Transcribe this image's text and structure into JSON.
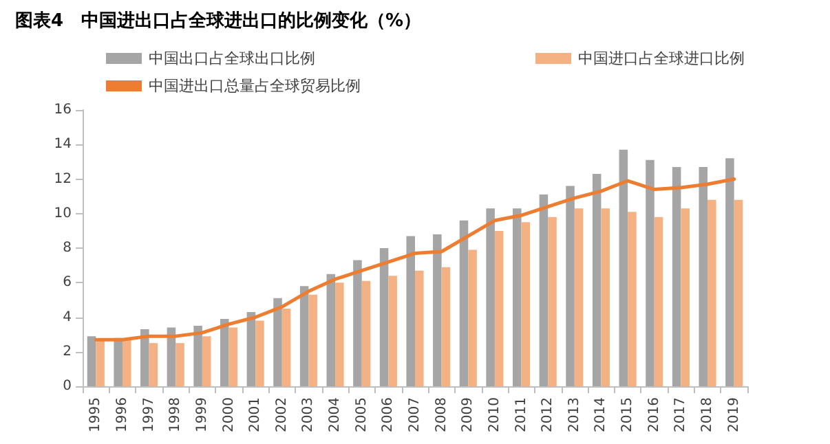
{
  "chart_data": {
    "type": "bar",
    "title": "图表4　中国进出口占全球进出口的比例变化（%）",
    "categories": [
      "1995",
      "1996",
      "1997",
      "1998",
      "1999",
      "2000",
      "2001",
      "2002",
      "2003",
      "2004",
      "2005",
      "2006",
      "2007",
      "2008",
      "2009",
      "2010",
      "2011",
      "2012",
      "2013",
      "2014",
      "2015",
      "2016",
      "2017",
      "2018",
      "2019"
    ],
    "series": [
      {
        "name": "中国出口占全球出口比例",
        "color": "#a5a5a5",
        "values": [
          2.9,
          2.8,
          3.3,
          3.4,
          3.5,
          3.9,
          4.3,
          5.1,
          5.8,
          6.5,
          7.3,
          8.0,
          8.7,
          8.8,
          9.6,
          10.3,
          10.3,
          11.1,
          11.6,
          12.3,
          13.7,
          13.1,
          12.7,
          12.7,
          13.2
        ]
      },
      {
        "name": "中国进口占全球进口比例",
        "color": "#f4b183",
        "values": [
          2.7,
          2.7,
          2.5,
          2.5,
          2.9,
          3.4,
          3.8,
          4.5,
          5.3,
          6.0,
          6.1,
          6.4,
          6.7,
          6.9,
          7.9,
          9.0,
          9.5,
          9.8,
          10.3,
          10.3,
          10.1,
          9.8,
          10.3,
          10.8,
          10.8
        ]
      },
      {
        "name": "中国进出口总量占全球贸易比例",
        "type": "line",
        "color": "#ed7d31",
        "values": [
          2.7,
          2.7,
          2.9,
          2.9,
          3.1,
          3.6,
          4.0,
          4.6,
          5.5,
          6.2,
          6.7,
          7.2,
          7.7,
          7.8,
          8.7,
          9.6,
          9.9,
          10.4,
          10.9,
          11.3,
          11.9,
          11.4,
          11.5,
          11.7,
          12.0
        ]
      }
    ],
    "ylim": [
      0,
      16
    ],
    "yticks": [
      0,
      2,
      4,
      6,
      8,
      10,
      12,
      14,
      16
    ],
    "grid": false,
    "legend": "top",
    "marker": "none"
  }
}
